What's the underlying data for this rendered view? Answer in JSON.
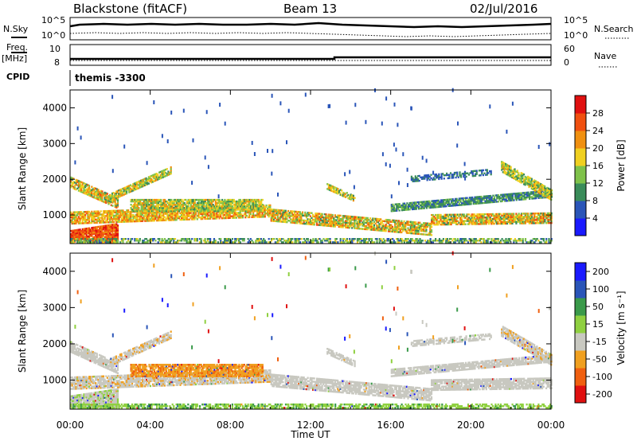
{
  "header": {
    "station": "Blackstone (fitACF)",
    "beam": "Beam 13",
    "date": "02/Jul/2016"
  },
  "top_panels": {
    "nsky_label": "N.Sky",
    "nsearch_label": "N.Search",
    "freq_label": "Freq.",
    "freq_unit": "[MHz]",
    "nave_label": "Nave",
    "cpid_label": "CPID",
    "cpid_value": "themis -3300",
    "log_hi": "10^5",
    "log_lo": "10^0",
    "freq_hi": "10",
    "freq_lo": "8",
    "nave_hi": "60",
    "nave_lo": "0"
  },
  "colors": {
    "power": [
      "#1a1aff",
      "#2a55b8",
      "#3a8c5a",
      "#7fc24a",
      "#f0d020",
      "#f09010",
      "#f05010",
      "#e01010"
    ],
    "velocity": [
      "#e01010",
      "#f06010",
      "#f0a020",
      "#c8c8c0",
      "#8fd040",
      "#3a9a4a",
      "#2a55b8",
      "#1a1aff"
    ]
  },
  "chart_data": [
    {
      "type": "heatmap",
      "title": "Power",
      "xlabel": "",
      "ylabel": "Slant Range [km]",
      "x_ticks": [
        "00:00",
        "04:00",
        "08:00",
        "12:00",
        "16:00",
        "20:00",
        "00:00"
      ],
      "y_ticks": [
        "1000",
        "2000",
        "3000",
        "4000"
      ],
      "xlim_hours": [
        0,
        24
      ],
      "ylim_km": [
        200,
        4500
      ],
      "colorbar_label": "Power [dB]",
      "colorbar_ticks": [
        "4",
        "8",
        "12",
        "16",
        "20",
        "24",
        "28"
      ],
      "colorbar_range": [
        0,
        32
      ]
    },
    {
      "type": "heatmap",
      "title": "Velocity",
      "xlabel": "Time UT",
      "ylabel": "Slant Range [km]",
      "x_ticks": [
        "00:00",
        "04:00",
        "08:00",
        "12:00",
        "16:00",
        "20:00",
        "00:00"
      ],
      "y_ticks": [
        "1000",
        "2000",
        "3000",
        "4000"
      ],
      "xlim_hours": [
        0,
        24
      ],
      "ylim_km": [
        200,
        4500
      ],
      "colorbar_label": "Velocity [m s⁻¹]",
      "colorbar_ticks": [
        "-200",
        "-100",
        "-50",
        "-15",
        "15",
        "50",
        "100",
        "200"
      ]
    }
  ]
}
